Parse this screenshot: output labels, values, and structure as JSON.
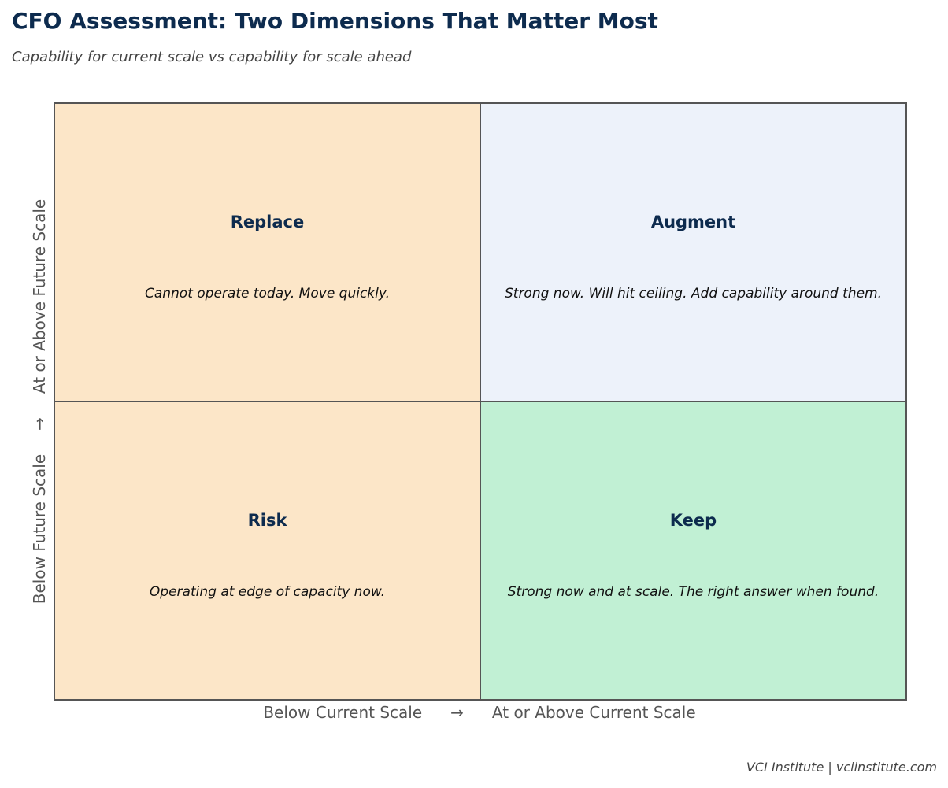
{
  "title": "CFO Assessment: Two Dimensions That Matter Most",
  "subtitle": "Capability for current scale vs capability for scale ahead",
  "y_axis": {
    "low_label": "Below Future Scale",
    "arrow": "→",
    "high_label": "At or Above Future Scale"
  },
  "x_axis": {
    "low_label": "Below Current Scale",
    "arrow": "→",
    "high_label": "At or Above Current Scale"
  },
  "quadrants": {
    "top_left": {
      "label": "Replace",
      "description": "Cannot operate today. Move quickly.",
      "color": "#fce6c8"
    },
    "top_right": {
      "label": "Augment",
      "description": "Strong now. Will hit ceiling. Add capability around them.",
      "color": "#edf2fa"
    },
    "bottom_left": {
      "label": "Risk",
      "description": "Operating at edge of capacity now.",
      "color": "#fce6c8"
    },
    "bottom_right": {
      "label": "Keep",
      "description": "Strong now and at scale. The right answer when found.",
      "color": "#c1f0d4"
    }
  },
  "footer": "VCI Institute  |  vciinstitute.com",
  "colors": {
    "title": "#0d2b4e",
    "border": "#555555"
  }
}
